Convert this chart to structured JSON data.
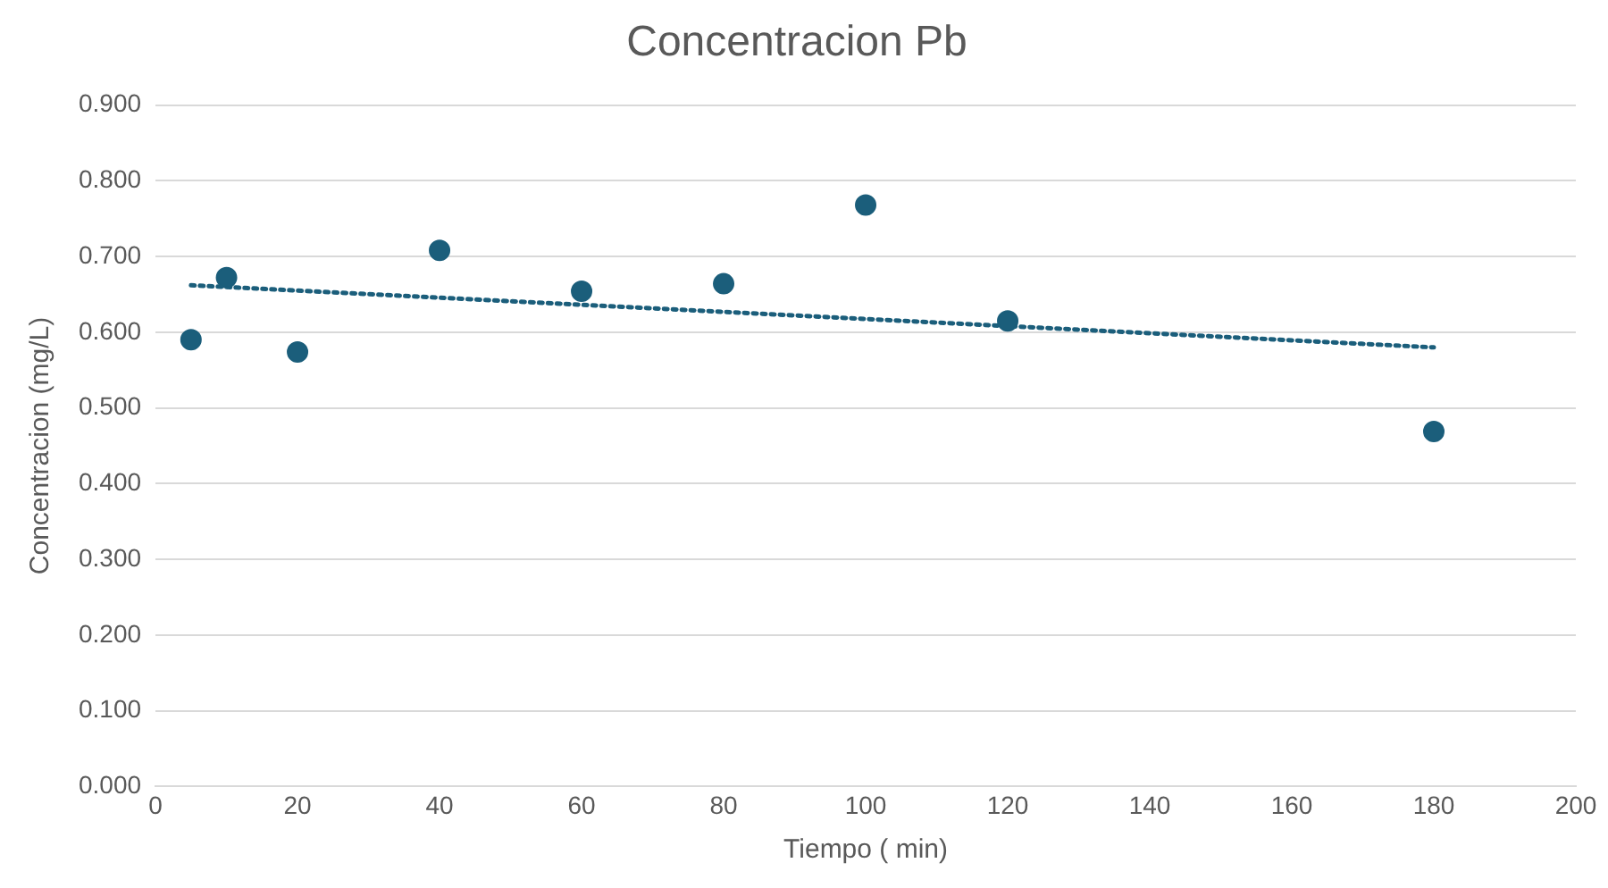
{
  "chart_data": {
    "type": "scatter",
    "title": "Concentracion Pb",
    "xlabel": "Tiempo ( min)",
    "ylabel": "Concentracion (mg/L)",
    "series": [
      {
        "type": "scatter",
        "color": "#1b5e7b",
        "marker": "circle",
        "x": [
          5,
          10,
          20,
          40,
          60,
          80,
          100,
          120,
          180
        ],
        "values": [
          0.59,
          0.672,
          0.574,
          0.708,
          0.654,
          0.664,
          0.768,
          0.615,
          0.469
        ]
      },
      {
        "type": "line",
        "color": "#1b5e7b",
        "line_style": "dotted",
        "marker": "none",
        "x": [
          5,
          180
        ],
        "values": [
          0.662,
          0.58
        ]
      }
    ],
    "xlim": [
      0,
      200
    ],
    "xticks": [
      0,
      20,
      40,
      60,
      80,
      100,
      120,
      140,
      160,
      180,
      200
    ],
    "ylim": [
      0,
      0.9
    ],
    "yticks": [
      {
        "value": 0,
        "label": "0.000"
      },
      {
        "value": 0.1,
        "label": "0.100"
      },
      {
        "value": 0.2,
        "label": "0.200"
      },
      {
        "value": 0.3,
        "label": "0.300"
      },
      {
        "value": 0.4,
        "label": "0.400"
      },
      {
        "value": 0.5,
        "label": "0.500"
      },
      {
        "value": 0.6,
        "label": "0.600"
      },
      {
        "value": 0.7,
        "label": "0.700"
      },
      {
        "value": 0.8,
        "label": "0.800"
      },
      {
        "value": 0.9,
        "label": "0.900"
      }
    ],
    "grid": "y",
    "legend": false
  }
}
